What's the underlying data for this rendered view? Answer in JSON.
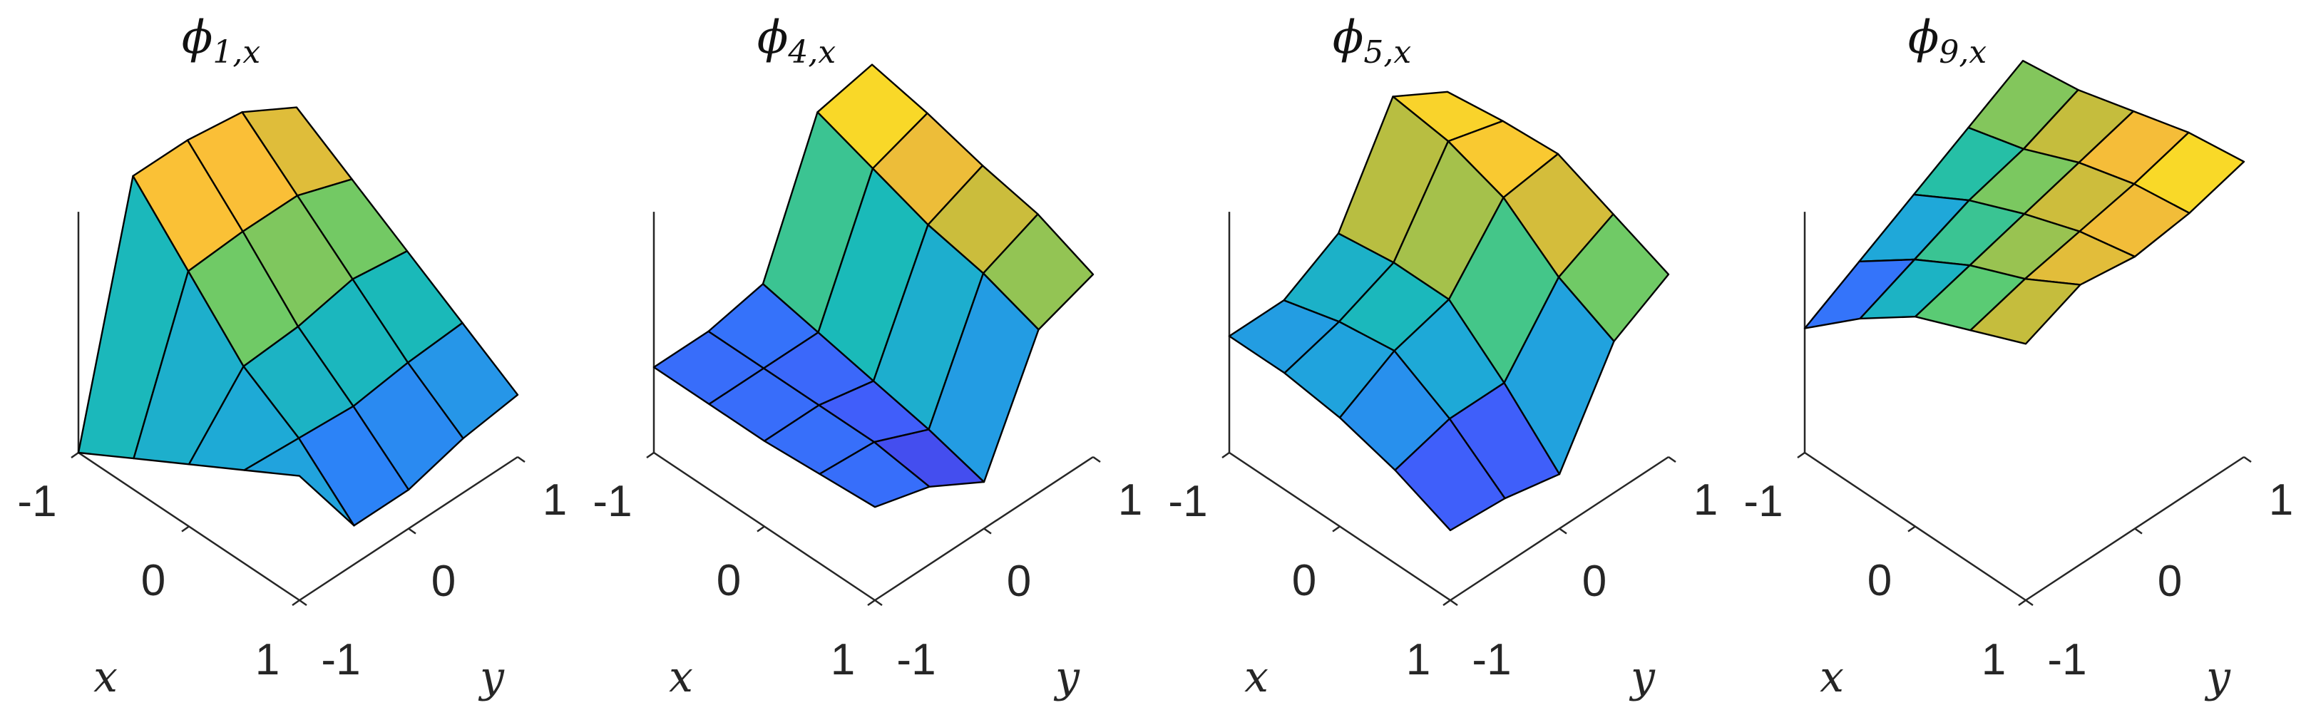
{
  "chart_data": [
    {
      "type": "surface",
      "title_symbol": "ϕ",
      "title_sub": "1,x",
      "xlabel": "x",
      "ylabel": "y",
      "x_ticks": [
        "-1",
        "0",
        "1"
      ],
      "y_ticks": [
        "-1",
        "0",
        "1"
      ],
      "xlim": [
        -1,
        1
      ],
      "ylim": [
        -1,
        1
      ],
      "grid": "5x5 mesh",
      "colormap": "parula",
      "z": [
        [
          0.0,
          0.62,
          0.62,
          0.6,
          0.52
        ],
        [
          0.08,
          0.47,
          0.48,
          0.48,
          0.43
        ],
        [
          0.16,
          0.32,
          0.33,
          0.36,
          0.34
        ],
        [
          0.24,
          0.23,
          0.22,
          0.24,
          0.25
        ],
        [
          0.32,
          0.1,
          0.1,
          0.14,
          0.16
        ]
      ]
    },
    {
      "type": "surface",
      "title_symbol": "ϕ",
      "title_sub": "4,x",
      "xlabel": "x",
      "ylabel": "y",
      "x_ticks": [
        "-1",
        "0",
        "1"
      ],
      "y_ticks": [
        "-1",
        "0",
        "1"
      ],
      "xlim": [
        -1,
        1
      ],
      "ylim": [
        -1,
        1
      ],
      "grid": "5x5 mesh",
      "colormap": "parula",
      "z": [
        [
          0.22,
          0.22,
          0.25,
          0.6,
          0.63
        ],
        [
          0.22,
          0.22,
          0.22,
          0.55,
          0.6
        ],
        [
          0.22,
          0.22,
          0.19,
          0.5,
          0.56
        ],
        [
          0.23,
          0.22,
          0.16,
          0.47,
          0.53
        ],
        [
          0.24,
          0.2,
          0.12,
          0.42,
          0.47
        ]
      ]
    },
    {
      "type": "surface",
      "title_symbol": "ϕ",
      "title_sub": "5,x",
      "xlabel": "x",
      "ylabel": "y",
      "x_ticks": [
        "-1",
        "0",
        "1"
      ],
      "y_ticks": [
        "-1",
        "0",
        "1"
      ],
      "xlim": [
        -1,
        1
      ],
      "ylim": [
        -1,
        1
      ],
      "grid": "5x5 mesh",
      "colormap": "parula",
      "z": [
        [
          0.3,
          0.3,
          0.38,
          0.64,
          0.56
        ],
        [
          0.3,
          0.34,
          0.4,
          0.62,
          0.58
        ],
        [
          0.28,
          0.36,
          0.4,
          0.57,
          0.59
        ],
        [
          0.24,
          0.28,
          0.28,
          0.46,
          0.53
        ],
        [
          0.18,
          0.17,
          0.14,
          0.39,
          0.47
        ]
      ]
    },
    {
      "type": "surface",
      "title_symbol": "ϕ",
      "title_sub": "9,x",
      "xlabel": "x",
      "ylabel": "y",
      "x_ticks": [
        "-1",
        "0",
        "1"
      ],
      "y_ticks": [
        "-1",
        "0",
        "1"
      ],
      "xlim": [
        -1,
        1
      ],
      "ylim": [
        -1,
        1
      ],
      "grid": "5x5 mesh",
      "colormap": "parula",
      "z": [
        [
          0.32,
          0.4,
          0.48,
          0.56,
          0.64
        ],
        [
          0.44,
          0.5,
          0.56,
          0.6,
          0.66
        ],
        [
          0.54,
          0.58,
          0.62,
          0.66,
          0.7
        ],
        [
          0.6,
          0.64,
          0.67,
          0.7,
          0.74
        ],
        [
          0.66,
          0.72,
          0.7,
          0.72,
          0.76
        ]
      ]
    }
  ]
}
